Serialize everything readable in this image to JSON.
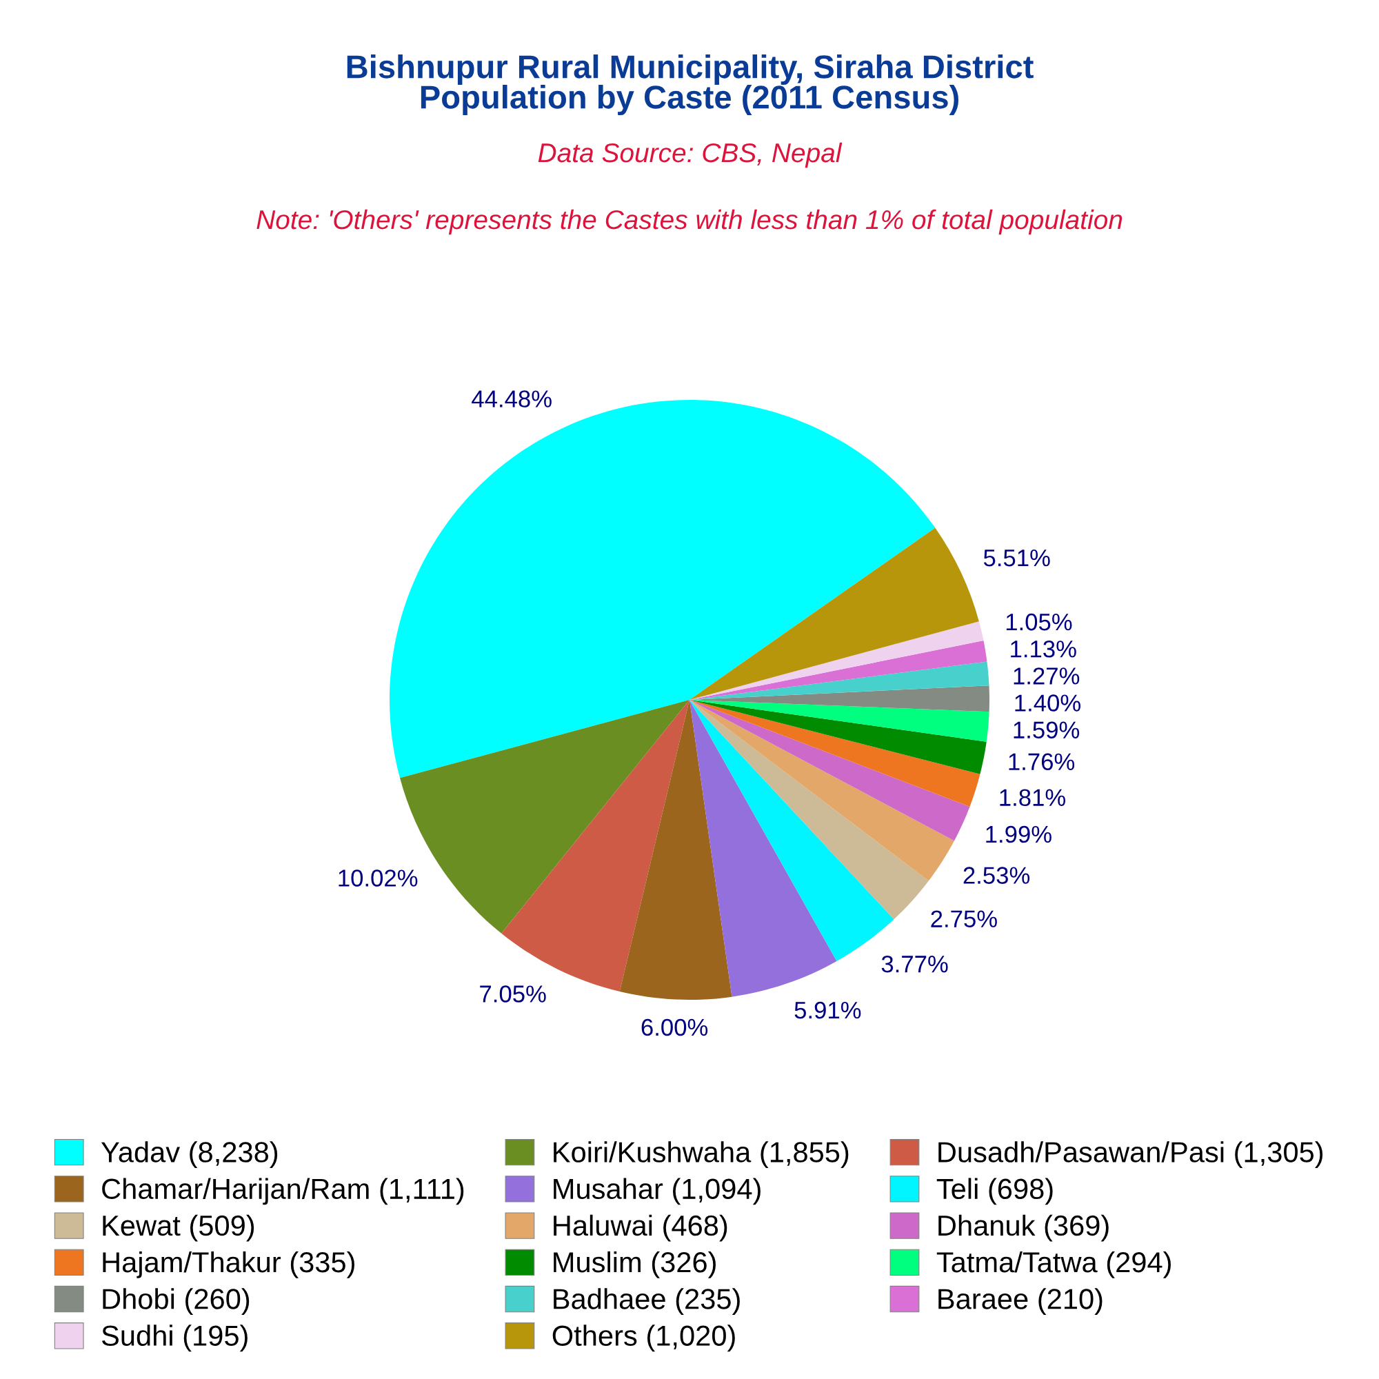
{
  "chart_data": {
    "type": "pie",
    "title": "Bishnupur Rural Municipality, Siraha District\nPopulation by Caste (2011 Census)",
    "subtitle": "Data Source: CBS, Nepal",
    "annotations": [
      "Note: 'Others' represents the Castes with less than 1% of total population"
    ],
    "categories": [
      "Yadav (8,238)",
      "Koiri/Kushwaha (1,855)",
      "Dusadh/Pasawan/Pasi (1,305)",
      "Chamar/Harijan/Ram (1,111)",
      "Musahar (1,094)",
      "Teli (698)",
      "Kewat (509)",
      "Haluwai (468)",
      "Dhanuk (369)",
      "Hajam/Thakur (335)",
      "Muslim (326)",
      "Tatma/Tatwa (294)",
      "Dhobi (260)",
      "Badhaee (235)",
      "Baraee (210)",
      "Sudhi (195)",
      "Others (1,020)"
    ],
    "values": [
      44.48,
      10.02,
      7.05,
      6.0,
      5.91,
      3.77,
      2.75,
      2.53,
      1.99,
      1.81,
      1.76,
      1.59,
      1.4,
      1.27,
      1.13,
      1.05,
      5.51
    ],
    "value_labels": [
      "44.48%",
      "10.02%",
      "7.05%",
      "6.00%",
      "5.91%",
      "3.77%",
      "2.75%",
      "2.53%",
      "1.99%",
      "1.81%",
      "1.76%",
      "1.59%",
      "1.40%",
      "1.27%",
      "1.13%",
      "1.05%",
      "5.51%"
    ],
    "colors": [
      "#00ffff",
      "#6b8e23",
      "#cd5b45",
      "#9b651d",
      "#9370db",
      "#00f5ff",
      "#cdba96",
      "#e3a869",
      "#cd69c9",
      "#ee7621",
      "#008b00",
      "#00ff7f",
      "#838b83",
      "#48d1cc",
      "#da70d6",
      "#eed2ee",
      "#b8960c"
    ],
    "legend": "bottom"
  }
}
